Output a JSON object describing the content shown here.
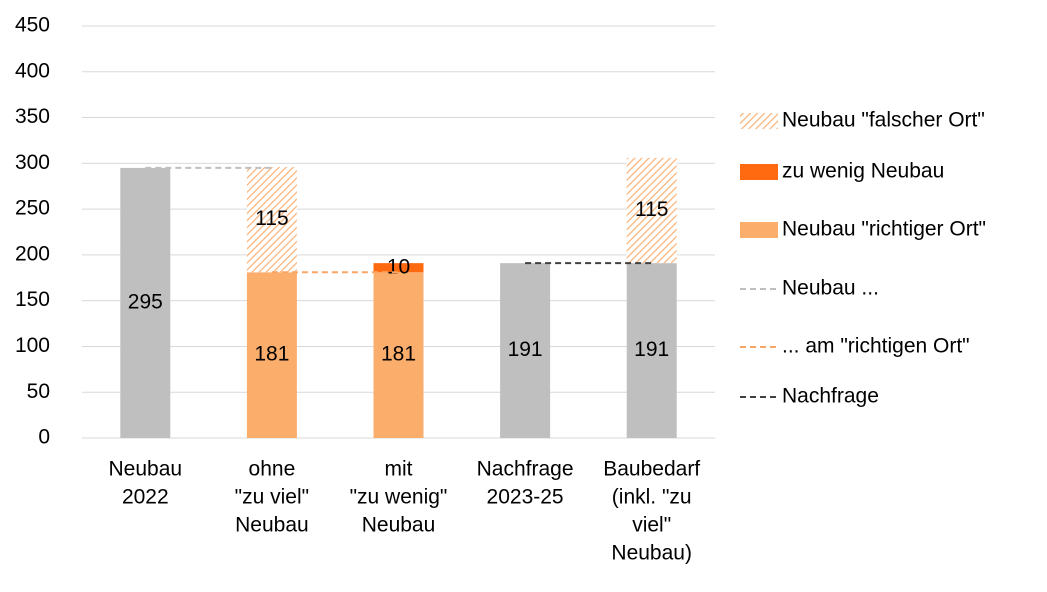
{
  "chart_data": {
    "type": "bar",
    "stacked": true,
    "grid": true,
    "categories": [
      [
        "Neubau",
        "2022"
      ],
      [
        "ohne",
        "\"zu viel\"",
        "Neubau"
      ],
      [
        "mit",
        "\"zu wenig\"",
        "Neubau"
      ],
      [
        "Nachfrage",
        "2023-25"
      ],
      [
        "Baubedarf",
        "(inkl. \"zu",
        "viel\"",
        "Neubau)"
      ]
    ],
    "ylim": [
      0,
      450
    ],
    "yticks": [
      0,
      50,
      100,
      150,
      200,
      250,
      300,
      350,
      400,
      450
    ],
    "series": [
      {
        "color": "#bfbfbf",
        "values": [
          295,
          null,
          null,
          191,
          191
        ]
      },
      {
        "name": "Neubau \"richtiger Ort\"",
        "color": "#fbad6b",
        "values": [
          null,
          181,
          181,
          null,
          null
        ]
      },
      {
        "name": "zu wenig Neubau",
        "color": "#ff6a10",
        "values": [
          null,
          null,
          10,
          null,
          null
        ]
      },
      {
        "name": "Neubau \"falscher Ort\"",
        "color": "#f9b47a",
        "pattern": "hatch",
        "values": [
          null,
          115,
          null,
          null,
          115
        ]
      },
      {
        "name": "Neubau ...",
        "type": "line",
        "dashed": true,
        "color": "#bfbfbf",
        "values": [
          295,
          295,
          null,
          null,
          null
        ]
      },
      {
        "name": "... am \"richtigen Ort\"",
        "type": "line",
        "dashed": true,
        "color": "#f9a566",
        "values": [
          null,
          181,
          181,
          null,
          null
        ]
      },
      {
        "name": "Nachfrage",
        "type": "line",
        "dashed": true,
        "color": "#404040",
        "values": [
          null,
          null,
          null,
          191,
          191
        ]
      }
    ]
  }
}
